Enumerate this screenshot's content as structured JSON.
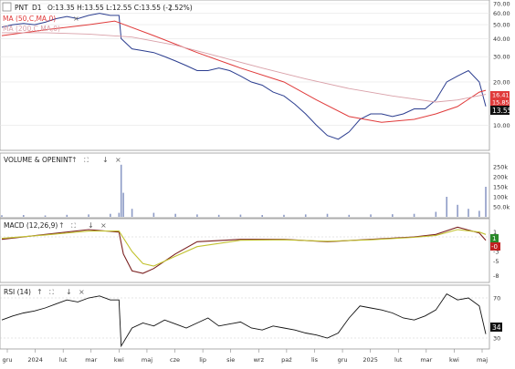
{
  "header": {
    "symbol": "PNT",
    "timeframe": "D1",
    "ohlc": "O:13.35 H:13.55 L:12.55 C:13.55 (-2.52%)",
    "ma50_label": "MA (50,C,MA,0)",
    "ma200_label": "MA (200,C,MA,0)"
  },
  "colors": {
    "price": "#2b3d8f",
    "ma50": "#e03a3a",
    "ma200": "#d9a0a8",
    "volume": "#8d9bc6",
    "macd": "#7a2020",
    "signal": "#c2c230",
    "rsi": "#111111",
    "grid": "#e6e6e6",
    "axis": "#777777"
  },
  "panels": {
    "volume_label": "VOLUME & OPENINT",
    "macd_label": "MACD (12,26,9)",
    "rsi_label": "RSI (14)",
    "toolbar_icons": [
      "arrow-up-icon",
      "arrow-down-icon",
      "expand-icon",
      "close-icon"
    ]
  },
  "price_badges": {
    "last": "13.55",
    "a": "16.41",
    "b": "15.85"
  },
  "chart_data": [
    {
      "type": "line",
      "title": "PNT D1",
      "x_axis_labels": [
        "gru",
        "2024",
        "lut",
        "mar",
        "kwi",
        "maj",
        "cze",
        "lip",
        "sie",
        "wrz",
        "paź",
        "lis",
        "gru",
        "2025",
        "lut",
        "mar",
        "kwi",
        "maj"
      ],
      "y_ticks": [
        "70.00",
        "60.00",
        "50.00",
        "40.00",
        "30.00",
        "20.00",
        "10.00"
      ],
      "y_scale": "log",
      "ylim": [
        7,
        70
      ],
      "series": [
        {
          "name": "PNT",
          "x": [
            0,
            5,
            10,
            15,
            20,
            25,
            30,
            35,
            40,
            45,
            50,
            54,
            55,
            60,
            65,
            70,
            75,
            80,
            85,
            90,
            95,
            100,
            105,
            110,
            115,
            120,
            125,
            130,
            135,
            140,
            145,
            150,
            155,
            160,
            165,
            170,
            175,
            180,
            185,
            190,
            195,
            200,
            205,
            210,
            215,
            220,
            223
          ],
          "values": [
            48,
            50,
            51,
            50,
            52,
            55,
            57,
            55,
            58,
            60,
            58,
            58,
            40,
            34,
            33,
            32,
            30,
            28,
            26,
            24,
            24,
            25,
            24,
            22,
            20,
            19,
            17,
            16,
            14,
            12,
            10,
            8.5,
            8,
            9,
            11,
            12,
            12,
            11.5,
            12,
            13,
            13,
            15,
            20,
            22,
            24,
            20,
            13.55
          ]
        },
        {
          "name": "MA (50,C,MA,0)",
          "x": [
            0,
            20,
            40,
            52,
            70,
            90,
            110,
            130,
            145,
            160,
            175,
            190,
            200,
            210,
            220,
            223
          ],
          "values": [
            42,
            46,
            50,
            53,
            42,
            32,
            25,
            20,
            15,
            11.5,
            10.5,
            11,
            12,
            13.5,
            17,
            17.5
          ]
        },
        {
          "name": "MA (200,C,MA,0)",
          "x": [
            0,
            20,
            40,
            60,
            80,
            100,
            120,
            140,
            160,
            180,
            200,
            210,
            223
          ],
          "values": [
            44,
            44,
            43,
            41,
            36,
            30,
            25,
            21,
            18,
            16,
            14.5,
            15,
            16.4
          ]
        }
      ]
    },
    {
      "type": "bar",
      "title": "VOLUME & OPENINT",
      "y_ticks": [
        "250k",
        "200k",
        "150k",
        "100k",
        "50.0k"
      ],
      "ylim": [
        0,
        300000
      ],
      "x": [
        0,
        10,
        20,
        30,
        40,
        50,
        54,
        55,
        56,
        60,
        70,
        80,
        90,
        100,
        110,
        120,
        130,
        140,
        150,
        160,
        170,
        180,
        190,
        200,
        205,
        210,
        215,
        220,
        223
      ],
      "values": [
        8000,
        9000,
        7000,
        10000,
        12000,
        15000,
        20000,
        260000,
        120000,
        40000,
        20000,
        15000,
        12000,
        10000,
        11000,
        9000,
        10000,
        12000,
        15000,
        10000,
        12000,
        13000,
        15000,
        25000,
        100000,
        60000,
        40000,
        30000,
        150000
      ]
    },
    {
      "type": "line",
      "title": "MACD (12,26,9)",
      "y_ticks": [
        "1",
        "-0",
        "-3",
        "-5",
        "-8"
      ],
      "ylim": [
        -9,
        3
      ],
      "series": [
        {
          "name": "MACD",
          "x": [
            0,
            20,
            40,
            54,
            56,
            60,
            65,
            70,
            80,
            90,
            110,
            130,
            150,
            170,
            190,
            200,
            210,
            220,
            223
          ],
          "values": [
            -0.5,
            0.5,
            1.5,
            1.0,
            -3.5,
            -7.0,
            -7.5,
            -6.5,
            -3.5,
            -1.0,
            -0.5,
            -0.5,
            -1.0,
            -0.5,
            0.0,
            0.5,
            2.0,
            0.8,
            -0.7
          ]
        },
        {
          "name": "Signal",
          "x": [
            0,
            20,
            40,
            54,
            60,
            65,
            70,
            80,
            90,
            110,
            130,
            150,
            170,
            190,
            200,
            210,
            220,
            223
          ],
          "values": [
            -0.3,
            0.4,
            1.2,
            1.2,
            -3.0,
            -5.5,
            -6.0,
            -4.0,
            -2.0,
            -0.7,
            -0.6,
            -0.9,
            -0.6,
            -0.1,
            0.3,
            1.5,
            1.0,
            0.5
          ]
        }
      ],
      "badges": [
        "1",
        "-0"
      ]
    },
    {
      "type": "line",
      "title": "RSI (14)",
      "y_ticks": [
        "70",
        "30"
      ],
      "ylim": [
        20,
        80
      ],
      "series": [
        {
          "name": "RSI",
          "x": [
            0,
            5,
            10,
            15,
            20,
            25,
            30,
            35,
            40,
            45,
            50,
            54,
            55,
            60,
            65,
            70,
            75,
            80,
            85,
            90,
            95,
            100,
            105,
            110,
            115,
            120,
            125,
            130,
            135,
            140,
            145,
            150,
            155,
            160,
            165,
            170,
            175,
            180,
            185,
            190,
            195,
            200,
            205,
            210,
            215,
            220,
            223
          ],
          "values": [
            48,
            52,
            55,
            57,
            60,
            64,
            68,
            66,
            70,
            72,
            68,
            68,
            22,
            40,
            45,
            42,
            48,
            44,
            40,
            45,
            50,
            42,
            44,
            46,
            40,
            38,
            42,
            40,
            38,
            35,
            33,
            30,
            35,
            50,
            62,
            60,
            58,
            55,
            50,
            48,
            52,
            58,
            74,
            68,
            70,
            62,
            34
          ]
        }
      ],
      "last_value": "34"
    }
  ]
}
